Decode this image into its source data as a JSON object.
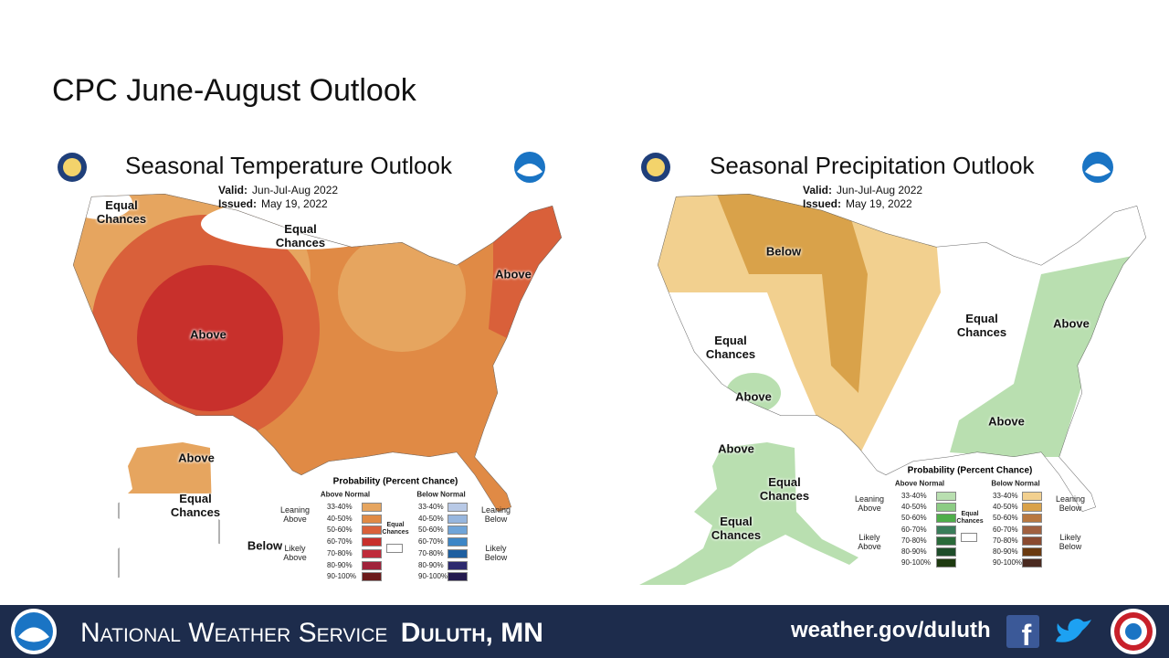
{
  "title": "CPC June-August Outlook",
  "maps": [
    {
      "title": "Seasonal Temperature Outlook",
      "valid_label": "Valid:",
      "valid": "Jun-Jul-Aug 2022",
      "issued_label": "Issued:",
      "issued": "May 19, 2022",
      "regions": [
        "Equal Chances",
        "Equal Chances",
        "Above",
        "Above",
        "Above",
        "Equal Chances",
        "Below"
      ],
      "legend": {
        "title": "Probability (Percent Chance)",
        "above_header": "Above Normal",
        "below_header": "Below Normal",
        "leaning_above": "Leaning Above",
        "likely_above": "Likely Above",
        "equal": "Equal Chances",
        "leaning_below": "Leaning Below",
        "likely_below": "Likely Below",
        "above_bins": [
          "33-40%",
          "40-50%",
          "50-60%",
          "60-70%",
          "70-80%",
          "80-90%",
          "90-100%"
        ],
        "above_colors": [
          "#e6a55f",
          "#e08a45",
          "#d9603a",
          "#c8302c",
          "#bf2a3a",
          "#a0223a",
          "#6b1a1a"
        ],
        "below_bins": [
          "33-40%",
          "40-50%",
          "50-60%",
          "60-70%",
          "70-80%",
          "80-90%",
          "90-100%"
        ],
        "below_colors": [
          "#b8c9e6",
          "#97b6de",
          "#6fa4d8",
          "#3d86c6",
          "#1e5fa0",
          "#2c2a6e",
          "#241a4e"
        ]
      }
    },
    {
      "title": "Seasonal Precipitation Outlook",
      "valid_label": "Valid:",
      "valid": "Jun-Jul-Aug 2022",
      "issued_label": "Issued:",
      "issued": "May 19, 2022",
      "regions": [
        "Below",
        "Equal Chances",
        "Above",
        "Equal Chances",
        "Above",
        "Above",
        "Above",
        "Equal Chances",
        "Equal Chances"
      ],
      "legend": {
        "title": "Probability (Percent Chance)",
        "above_header": "Above Normal",
        "below_header": "Below Normal",
        "leaning_above": "Leaning Above",
        "likely_above": "Likely Above",
        "equal": "Equal Chances",
        "leaning_below": "Leaning Below",
        "likely_below": "Likely Below",
        "above_bins": [
          "33-40%",
          "40-50%",
          "50-60%",
          "60-70%",
          "70-80%",
          "80-90%",
          "90-100%"
        ],
        "above_colors": [
          "#b9dfb0",
          "#8ccc84",
          "#4fae4a",
          "#3a7d5a",
          "#2a6a3a",
          "#1e4d2a",
          "#1e3a10"
        ],
        "below_bins": [
          "33-40%",
          "40-50%",
          "50-60%",
          "60-70%",
          "70-80%",
          "80-90%",
          "90-100%"
        ],
        "below_colors": [
          "#f2d08f",
          "#d9a24a",
          "#b87840",
          "#a06040",
          "#8a4a30",
          "#6a3a10",
          "#4a2a20"
        ]
      }
    }
  ],
  "footer": {
    "agency": "National Weather Service",
    "office": "Duluth, MN",
    "url": "weather.gov/duluth"
  }
}
